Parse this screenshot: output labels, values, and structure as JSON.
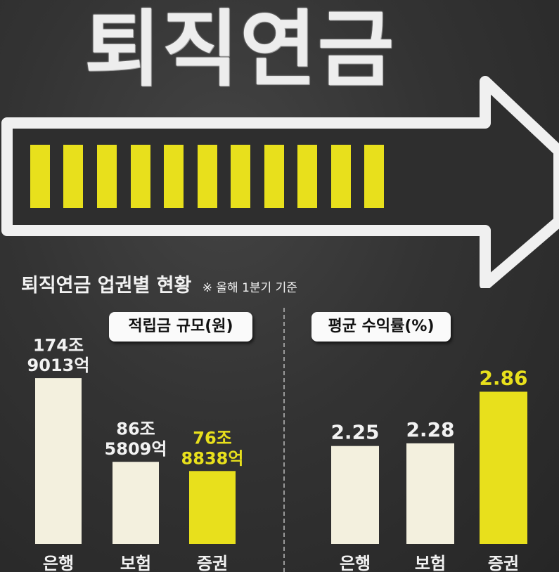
{
  "hero": {
    "title": "퇴직연금"
  },
  "header": {
    "title": "퇴직연금 업권별 현황",
    "note": "※ 올해 1분기 기준"
  },
  "colors": {
    "background": "#333333",
    "bar": "#f3f0de",
    "highlight": "#e8e01c",
    "text": "#f2f2f2"
  },
  "chart_data": [
    {
      "type": "bar",
      "title": "적립금 규모(원)",
      "unit": "원",
      "categories": [
        "은행",
        "보험",
        "증권"
      ],
      "values": [
        1749013,
        865809,
        768838
      ],
      "value_unit": "억원",
      "value_labels": [
        [
          "174조",
          "9013억"
        ],
        [
          "86조",
          "5809억"
        ],
        [
          "76조",
          "8838억"
        ]
      ],
      "highlight_index": 2,
      "ylim": [
        0,
        2150000
      ]
    },
    {
      "type": "bar",
      "title": "평균 수익률(%)",
      "unit": "%",
      "categories": [
        "은행",
        "보험",
        "증권"
      ],
      "values": [
        2.25,
        2.28,
        2.86
      ],
      "value_labels": [
        [
          "2.25"
        ],
        [
          "2.28"
        ],
        [
          "2.86"
        ]
      ],
      "highlight_index": 2,
      "ylim": [
        1.15,
        3.44
      ]
    }
  ]
}
